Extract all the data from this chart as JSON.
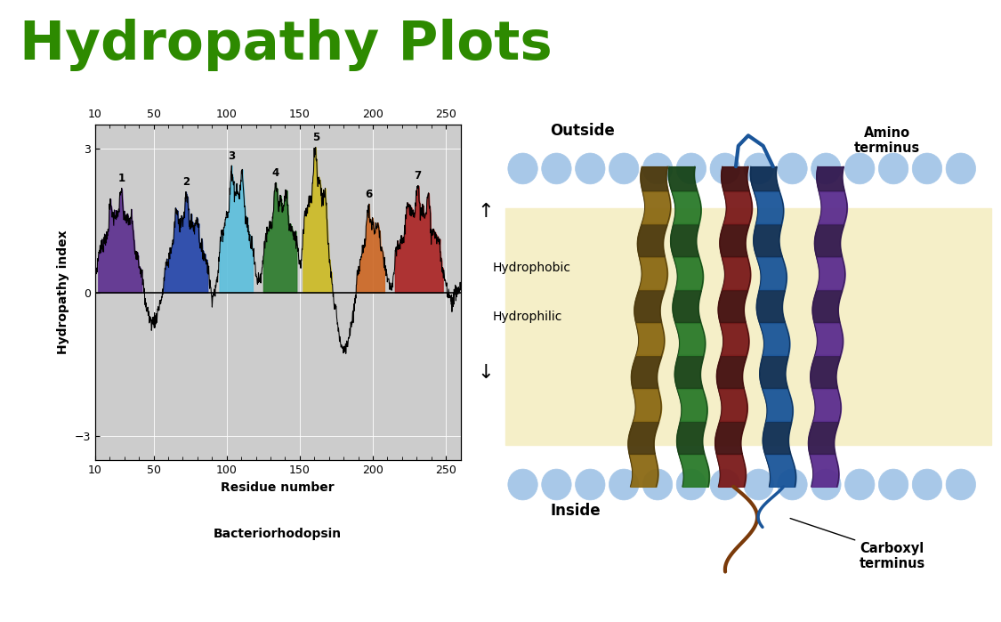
{
  "title": "Hydropathy Plots",
  "title_color": "#2d8a00",
  "title_fontsize": 44,
  "plot_bgcolor": "#cccccc",
  "fig_bgcolor": "#ffffff",
  "xlabel": "Residue number",
  "ylabel": "Hydropathy index",
  "subtitle": "Bacteriorhodopsin",
  "yticks": [
    -3,
    0,
    3
  ],
  "xticks": [
    10,
    50,
    100,
    150,
    200,
    250
  ],
  "xlim": [
    10,
    260
  ],
  "ylim": [
    -3.5,
    3.5
  ],
  "hydrophobic_label": "Hydrophobic",
  "hydrophilic_label": "Hydrophilic",
  "outside_label": "Outside",
  "inside_label": "Inside",
  "amino_label": "Amino\nterminus",
  "carboxyl_label": "Carboxyl\nterminus",
  "membrane_color": "#f5efc8",
  "lipid_head_color": "#a8c8e8",
  "seg_colors": [
    "#5b2d8e",
    "#2244aa",
    "#5bbfdd",
    "#2a7a2a",
    "#ccbb22",
    "#cc6622",
    "#aa2222"
  ],
  "seg_labels": [
    "1",
    "2",
    "3",
    "4",
    "5",
    "6",
    "7"
  ],
  "seg_starts": [
    12,
    57,
    95,
    125,
    152,
    188,
    215
  ],
  "seg_ends": [
    42,
    87,
    118,
    148,
    172,
    208,
    248
  ]
}
